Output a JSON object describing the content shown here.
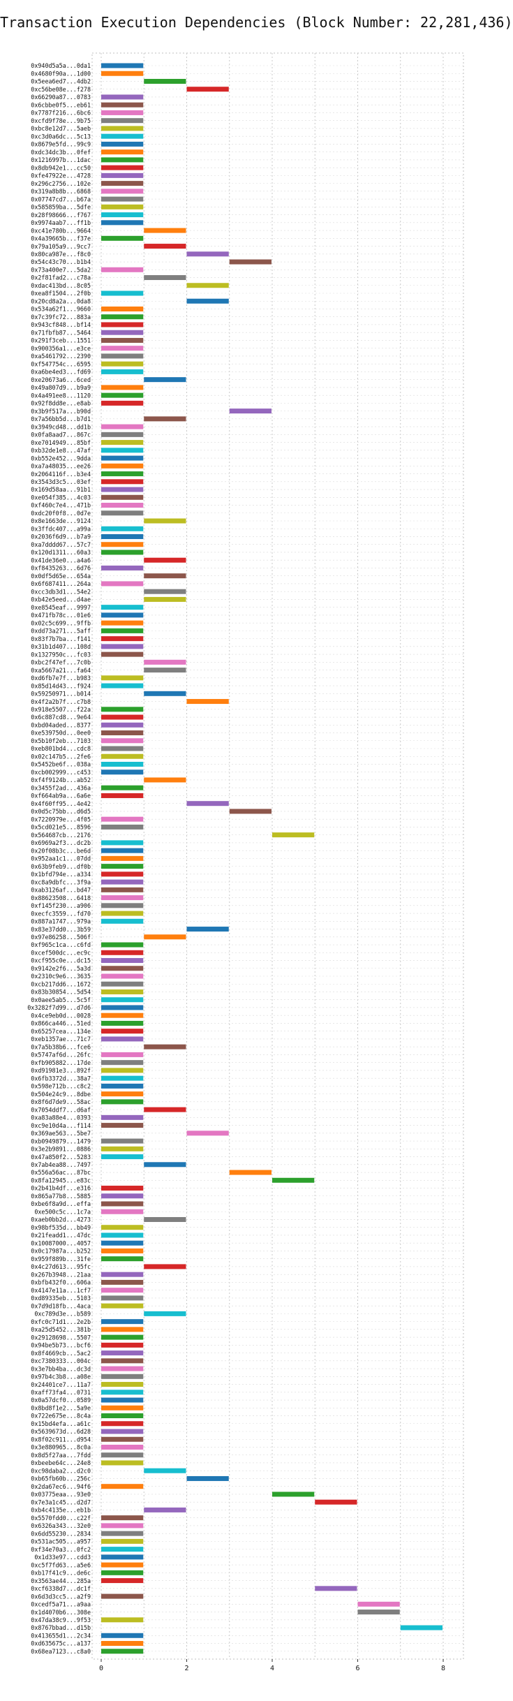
{
  "chart_data": {
    "type": "bar",
    "title": "Transaction Execution Dependencies (Block Number: 22,281,436)",
    "xlabel": "",
    "ylabel": "",
    "xlim": [
      0,
      8.5
    ],
    "x_ticks": [
      0,
      2,
      4,
      6,
      8
    ],
    "grid": true,
    "legend": "none",
    "palette": [
      "#1f77b4",
      "#ff7f0e",
      "#2ca02c",
      "#d62728",
      "#9467bd",
      "#8c564b",
      "#e377c2",
      "#7f7f7f",
      "#bcbd22",
      "#17becf"
    ],
    "categories": [
      "0x940d5a5a...0da1",
      "0x4680f90a...1d00",
      "0x5eea6ed7...4db2",
      "0xc56be08e...f278",
      "0x66290a87...0783",
      "0x6cbbe0f5...eb61",
      "0x7787f216...6bc6",
      "0xcfd9f78e...9b75",
      "0xbc8e12d7...5aeb",
      "0xc3d0a6dc...5c13",
      "0x8679e5fd...99c9",
      "0xdc34dc3b...0fef",
      "0x1216997b...1dac",
      "0x8db942e1...cc50",
      "0xfe47922e...4728",
      "0x296c2756...102e",
      "0x319a8b8b...6868",
      "0x07747cd7...b67a",
      "0x585859ba...5dfe",
      "0x28f98666...f767",
      "0x9974aab7...ff1b",
      "0xc41e780b...9664",
      "0x4a39665b...f37e",
      "0x79a105a9...9cc7",
      "0x80ca987e...f8c0",
      "0x54c43c70...b1b4",
      "0x73a400e7...5da2",
      "0x2f81fad2...c78a",
      "0xdac413bd...8c05",
      "0xea8f1504...2f0b",
      "0x20cd8a2a...0da8",
      "0x534a62f1...9660",
      "0x7c39fc72...883a",
      "0x943cf848...bf14",
      "0x71fbfb87...5464",
      "0x291f3ceb...1551",
      "0x900356a1...e3ce",
      "0xa5461792...2390",
      "0xf547754c...6595",
      "0xa6be4ed3...fd69",
      "0xe20673a6...6ced",
      "0x49a807d9...b9a9",
      "0x4a491ee8...1120",
      "0x92f8dd8e...e8ab",
      "0x3b9f517a...b90d",
      "0x7a56bb5d...b7d1",
      "0x3949cd48...dd1b",
      "0x0fa8aad7...867c",
      "0xe7014949...85bf",
      "0xb32de1e8...47af",
      "0xb552e452...9dda",
      "0xa7a48035...ee26",
      "0x2064116f...b3e4",
      "0x3543d3c5...03ef",
      "0x169d58aa...91b1",
      "0xe054f385...4c03",
      "0xf460c7e4...471b",
      "0xdc20f0f8...0d7e",
      "0x8e1663de...9124",
      "0x3ffdc407...a99a",
      "0x2036f6d9...b7a9",
      "0xa7dddd67...57c7",
      "0x120d1311...60a3",
      "0x41de36e0...a4a6",
      "0xf8435263...6d76",
      "0x0df5d65e...654a",
      "0x6f687411...264a",
      "0xcc3db3d1...54e2",
      "0xb42e5eed...d4ae",
      "0xe8545eaf...9997",
      "0x471fb78c...01e6",
      "0x02c5c699...9ffb",
      "0xdd73a271...5aff",
      "0x83f7b7ba...f141",
      "0x31b1d407...108d",
      "0x1327950c...fc03",
      "0xbc2f47ef...7c0b",
      "0xa5667a21...fa64",
      "0xd6fb7e7f...b983",
      "0x85d14d43...f924",
      "0x59250971...b014",
      "0x4f2a2b7f...c7b8",
      "0x918e5507...f22a",
      "0x6c887cd8...9e64",
      "0xbd04aded...8377",
      "0xe539750d...0ee0",
      "0x5b10f2eb...7103",
      "0xeb801bd4...cdc8",
      "0x02c147b5...2fe6",
      "0x5452be6f...038a",
      "0xcb002999...c453",
      "0xf4f9124b...ab52",
      "0x3455f2ad...436a",
      "0xf664ab9a...6a6e",
      "0x4f60ff95...4e42",
      "0x0d5c75bb...d6d5",
      "0x7220979e...4f05",
      "0x5cd021e5...8596",
      "0x564687cb...2176",
      "0x6969a2f3...dc2b",
      "0x20f08b3c...be6d",
      "0x952aa1c1...07dd",
      "0x63b9feb9...df0b",
      "0x1bfd794e...a334",
      "0xc8a9dbfc...3f9a",
      "0xab3126af...bd47",
      "0x88623508...6418",
      "0xf145f230...a906",
      "0xecfc3559...fd70",
      "0x887a1747...979a",
      "0x83e37dd0...3b59",
      "0x97e86258...506f",
      "0xf965c1ca...c6fd",
      "0xcef500dc...ec9c",
      "0xcf955c0e...dc15",
      "0x9142e2f6...5a3d",
      "0x2310c9e6...3635",
      "0xcb217dd6...1672",
      "0x83b30854...5d54",
      "0x0aee5ab5...5c5f",
      "0x3282f7d99...d7d6",
      "0x4ce9eb0d...0028",
      "0x866ca446...51ed",
      "0x65257cea...134e",
      "0xeb1357ae...71c7",
      "0x7a5b38b6...fce6",
      "0x5747af6d...26fc",
      "0xfb905882...17de",
      "0xd91981e3...892f",
      "0x6fb3372d...38a7",
      "0x598e712b...c8c2",
      "0x504e24c9...8dbe",
      "0x8f6d7de9...58ac",
      "0x7054ddf7...d6af",
      "0xa83a88e4...0393",
      "0xc9e10d4a...f114",
      "0x369ae563...5be7",
      "0xb0949879...1479",
      "0x3e2b9891...0886",
      "0x47a850f2...5283",
      "0x7ab4ea88...7497",
      "0x556a56ac...87bc",
      "0x8fa12945...e83c",
      "0x2b41b4df...e316",
      "0x865a77b8...5885",
      "0xbe6f8a9d...effa",
      "0xe500c5c...1c7a",
      "0xaeb0bb2d...4273",
      "0x98bf535d...bb49",
      "0x21feadd1...47dc",
      "0x10087000...4057",
      "0x0c17987a...b252",
      "0x959f889b...31fe",
      "0x4c27d613...95fc",
      "0x267b3948...21aa",
      "0xbfb432f0...606a",
      "0x4147e11a...1cf7",
      "0xd89335eb...5103",
      "0x7d9d18fb...4aca",
      "0xc789d3e...b589",
      "0xfc0c71d1...2e2b",
      "0xa25d5452...381b",
      "0x29128698...5507",
      "0x94be5b73...bcf6",
      "0x8f4669cb...5ac2",
      "0xc7380333...004c",
      "0x3e7bb4ba...dc3d",
      "0x97b4c3b8...a08e",
      "0x24401ce7...11a7",
      "0xaff73fa4...0731",
      "0x0a57dcf0...0589",
      "0x8bd8f1e2...5a9e",
      "0x722e675e...8c4a",
      "0x15bd4efa...a61c",
      "0x5639673d...6d28",
      "0x8f02c911...d954",
      "0x3e880965...8c0a",
      "0x8d5f27aa...7fdd",
      "0xbeebe64c...24e8",
      "0xc98daba2...d2c0",
      "0xb65fb60b...256c",
      "0x2da67ec6...94f6",
      "0x03775eaa...93e0",
      "0x7e3a1c45...d2d7",
      "0xb4c4135e...eb1b",
      "0x5570fdd0...c22f",
      "0x6326a343...32e0",
      "0x6dd55230...2834",
      "0x531ac505...a957",
      "0xf34e70a3...0fc2",
      "0x1d33e97...cdd3",
      "0xc5f7fd63...a5e6",
      "0xb17f41c9...de6c",
      "0x3563ae44...285a",
      "0xcf6338d7...dc1f",
      "0x6d3d3cc5...a2f9",
      "0xcedf5a71...a9aa",
      "0x1d4070b6...308e",
      "0x47da38c9...9f53",
      "0x8767bbad...d15b",
      "0x413655d1...2c34",
      "0xd635675c...a137",
      "0x68ea7123...c8a0"
    ],
    "series": [
      {
        "start": [
          0,
          0,
          1,
          2,
          0,
          0,
          0,
          0,
          0,
          0,
          0,
          0,
          0,
          0,
          0,
          0,
          0,
          0,
          0,
          0,
          0,
          1,
          0,
          1,
          2,
          3,
          0,
          1,
          2,
          0,
          2,
          0,
          0,
          0,
          0,
          0,
          0,
          0,
          0,
          0,
          1,
          0,
          0,
          0,
          3,
          1,
          0,
          0,
          0,
          0,
          0,
          0,
          0,
          0,
          0,
          0,
          0,
          0,
          1,
          0,
          0,
          0,
          0,
          1,
          0,
          1,
          0,
          1,
          1,
          0,
          0,
          0,
          0,
          0,
          0,
          0,
          1,
          1,
          0,
          0,
          1,
          2,
          0,
          0,
          0,
          0,
          0,
          0,
          0,
          0,
          0,
          1,
          0,
          0,
          2,
          3,
          0,
          0,
          4,
          0,
          0,
          0,
          0,
          0,
          0,
          0,
          0,
          0,
          0,
          0,
          2,
          1,
          0,
          0,
          0,
          0,
          0,
          0,
          0,
          0,
          0,
          0,
          0,
          0,
          0,
          1,
          0,
          0,
          0,
          0,
          0,
          0,
          0,
          1,
          0,
          0,
          2,
          0,
          0,
          0,
          1,
          3,
          4,
          0,
          0,
          0,
          0,
          1,
          0,
          0,
          0,
          0,
          0,
          1,
          0,
          0,
          0,
          0,
          0,
          1,
          0,
          0,
          0,
          0,
          0,
          0,
          0,
          0,
          0,
          0,
          0,
          0,
          0,
          0,
          0,
          0,
          0,
          0,
          0,
          1,
          2,
          0,
          4,
          5,
          1,
          0,
          0,
          0,
          0,
          0,
          0,
          0,
          0,
          0,
          5,
          0,
          6,
          6,
          0,
          7,
          0,
          0,
          0
        ],
        "duration": [
          1,
          1,
          1,
          1,
          1,
          1,
          1,
          1,
          1,
          1,
          1,
          1,
          1,
          1,
          1,
          1,
          1,
          1,
          1,
          1,
          1,
          1,
          1,
          1,
          1,
          1,
          1,
          1,
          1,
          1,
          1,
          1,
          1,
          1,
          1,
          1,
          1,
          1,
          1,
          1,
          1,
          1,
          1,
          1,
          1,
          1,
          1,
          1,
          1,
          1,
          1,
          1,
          1,
          1,
          1,
          1,
          1,
          1,
          1,
          1,
          1,
          1,
          1,
          1,
          1,
          1,
          1,
          1,
          1,
          1,
          1,
          1,
          1,
          1,
          1,
          1,
          1,
          1,
          1,
          1,
          1,
          1,
          1,
          1,
          1,
          1,
          1,
          1,
          1,
          1,
          1,
          1,
          1,
          1,
          1,
          1,
          1,
          1,
          1,
          1,
          1,
          1,
          1,
          1,
          1,
          1,
          1,
          1,
          1,
          1,
          1,
          1,
          1,
          1,
          1,
          1,
          1,
          1,
          1,
          1,
          1,
          1,
          1,
          1,
          1,
          1,
          1,
          1,
          1,
          1,
          1,
          1,
          1,
          1,
          1,
          1,
          1,
          1,
          1,
          1,
          1,
          1,
          1,
          1,
          1,
          1,
          1,
          1,
          1,
          1,
          1,
          1,
          1,
          1,
          1,
          1,
          1,
          1,
          1,
          1,
          1,
          1,
          1,
          1,
          1,
          1,
          1,
          1,
          1,
          1,
          1,
          1,
          1,
          1,
          1,
          1,
          1,
          1,
          1,
          1,
          1,
          1,
          1,
          1,
          1,
          1,
          1,
          1,
          1,
          1,
          1,
          1,
          1,
          1,
          1,
          1,
          1,
          1,
          1,
          1,
          1,
          1,
          1
        ]
      }
    ]
  }
}
